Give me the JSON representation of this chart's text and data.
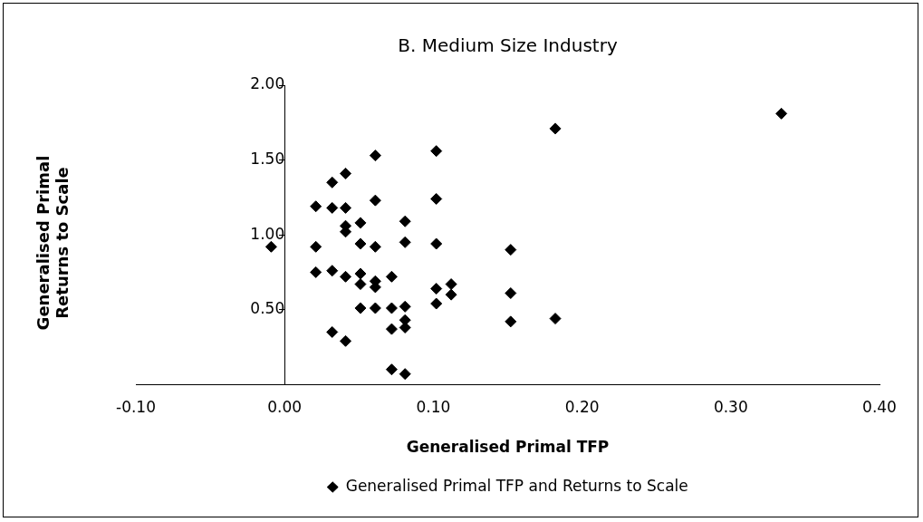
{
  "chart_data": {
    "type": "scatter",
    "title": "B. Medium Size Industry",
    "xlabel": "Generalised Primal TFP",
    "ylabel": "Generalised Primal Returns to Scale",
    "xlim": [
      -0.1,
      0.4
    ],
    "xticks": [
      {
        "value": -0.1,
        "label": "-0.10"
      },
      {
        "value": 0,
        "label": "0.00"
      },
      {
        "value": 0.1,
        "label": "0.10"
      },
      {
        "value": 0.2,
        "label": "0.20"
      },
      {
        "value": 0.3,
        "label": "0.30"
      },
      {
        "value": 0.4,
        "label": "0.40"
      }
    ],
    "ylim": [
      0,
      2
    ],
    "yticks": [
      {
        "value": 0,
        "label": null
      },
      {
        "value": 0.5,
        "label": "0.50"
      },
      {
        "value": 1,
        "label": "1.00"
      },
      {
        "value": 1.5,
        "label": "1.50"
      },
      {
        "value": 2,
        "label": "2.00"
      }
    ],
    "grid": false,
    "legend": "bottom",
    "marker": "diamond",
    "series": [
      {
        "name": "Generalised Primal TFP and Returns to Scale",
        "color": "#000000",
        "x": [
          -0.009,
          0.021,
          0.021,
          0.021,
          0.032,
          0.032,
          0.032,
          0.032,
          0.041,
          0.041,
          0.041,
          0.041,
          0.041,
          0.041,
          0.051,
          0.051,
          0.051,
          0.051,
          0.051,
          0.061,
          0.061,
          0.061,
          0.061,
          0.061,
          0.061,
          0.072,
          0.072,
          0.072,
          0.072,
          0.081,
          0.081,
          0.081,
          0.081,
          0.081,
          0.081,
          0.102,
          0.102,
          0.102,
          0.102,
          0.102,
          0.112,
          0.112,
          0.152,
          0.152,
          0.152,
          0.182,
          0.182,
          0.334
        ],
        "values": [
          0.92,
          1.19,
          0.92,
          0.75,
          1.35,
          1.18,
          0.76,
          0.35,
          1.41,
          1.18,
          1.06,
          1.02,
          0.72,
          0.29,
          1.08,
          0.94,
          0.74,
          0.67,
          0.51,
          1.53,
          1.23,
          0.92,
          0.69,
          0.65,
          0.51,
          0.72,
          0.51,
          0.37,
          0.1,
          1.09,
          0.95,
          0.52,
          0.43,
          0.38,
          0.07,
          1.56,
          1.24,
          0.94,
          0.64,
          0.54,
          0.67,
          0.6,
          0.9,
          0.61,
          0.42,
          1.71,
          0.44,
          1.81
        ]
      }
    ]
  }
}
